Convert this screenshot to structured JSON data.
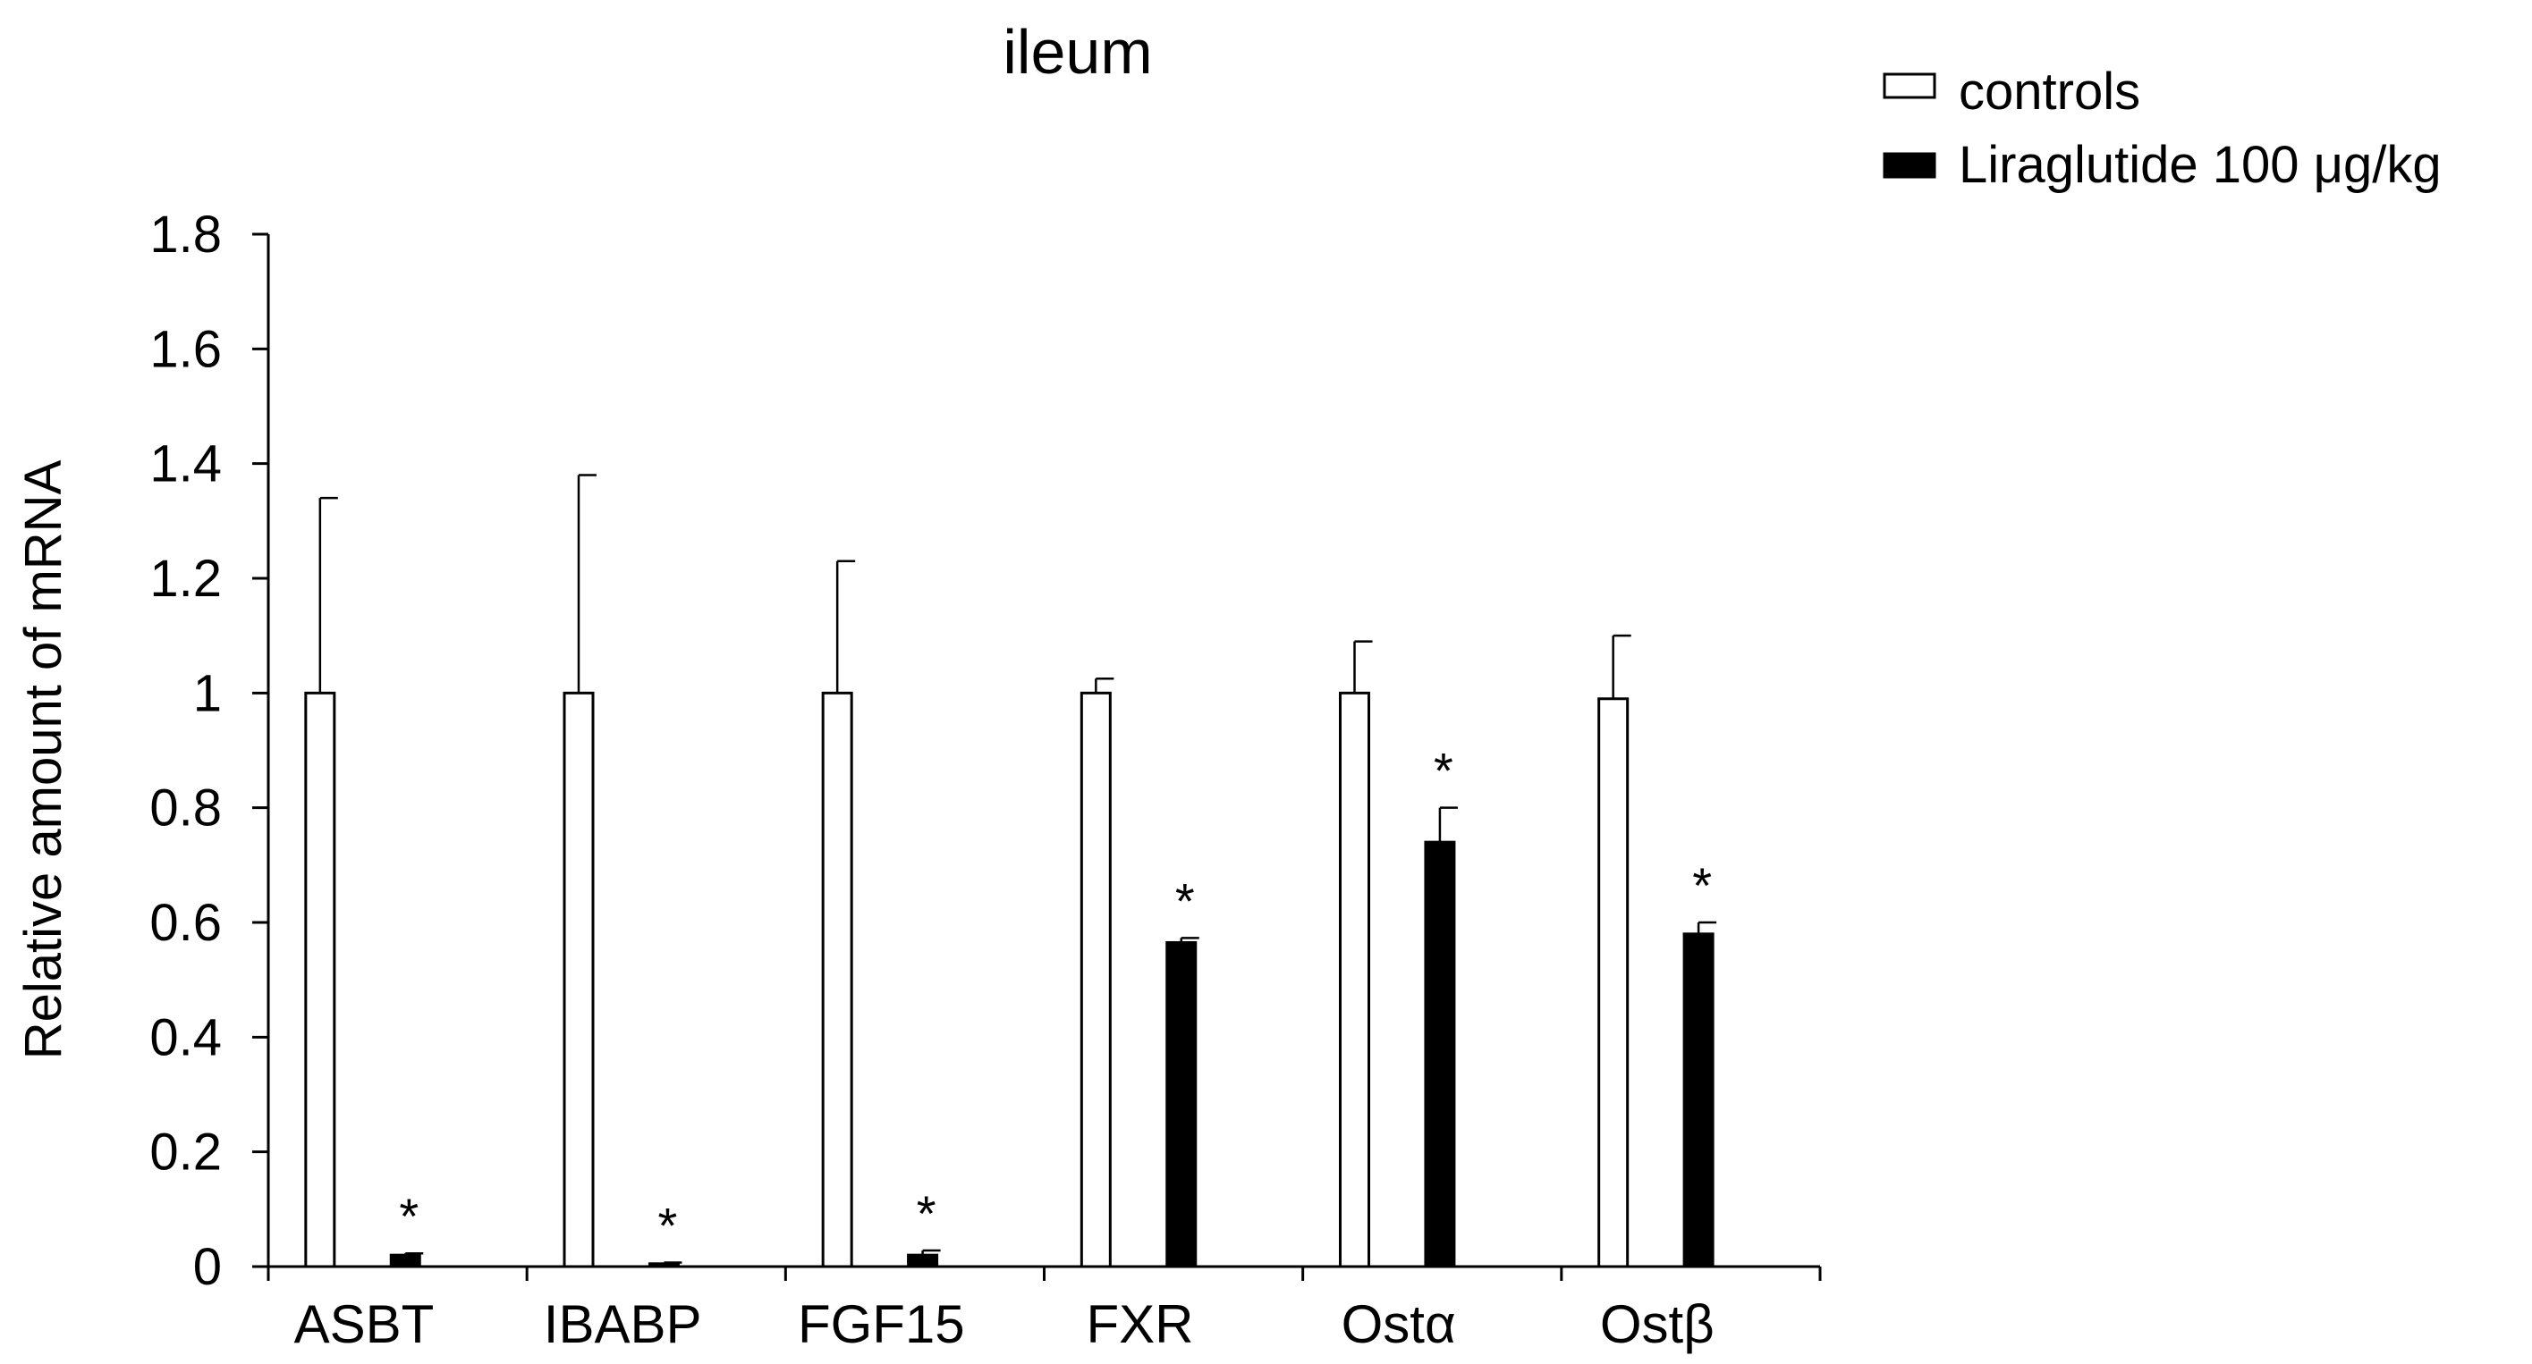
{
  "chart_data": {
    "type": "bar",
    "title": "ileum",
    "xlabel": "",
    "ylabel": "Relative amount of mRNA",
    "ylim": [
      0,
      1.8
    ],
    "yticks": [
      "0",
      "0.2",
      "0.4",
      "0.6",
      "0.8",
      "1",
      "1.2",
      "1.4",
      "1.6",
      "1.8"
    ],
    "categories": [
      "ASBT",
      "IBABP",
      "FGF15",
      "FXR",
      "Ostα",
      "Ostβ"
    ],
    "series": [
      {
        "name": "controls",
        "fill": "#ffffff",
        "values": [
          1.0,
          1.0,
          1.0,
          1.0,
          1.0,
          0.99
        ],
        "errors": [
          0.34,
          0.38,
          0.23,
          0.025,
          0.09,
          0.11
        ]
      },
      {
        "name": "Liraglutide 100 μg/kg",
        "fill": "#000000",
        "values": [
          0.02,
          0.005,
          0.02,
          0.565,
          0.74,
          0.58
        ],
        "errors": [
          0.003,
          0.002,
          0.008,
          0.008,
          0.06,
          0.02
        ]
      }
    ],
    "significance": [
      "*",
      "*",
      "*",
      "*",
      "*",
      "*"
    ],
    "legend_position": "top-right",
    "grid": false
  }
}
